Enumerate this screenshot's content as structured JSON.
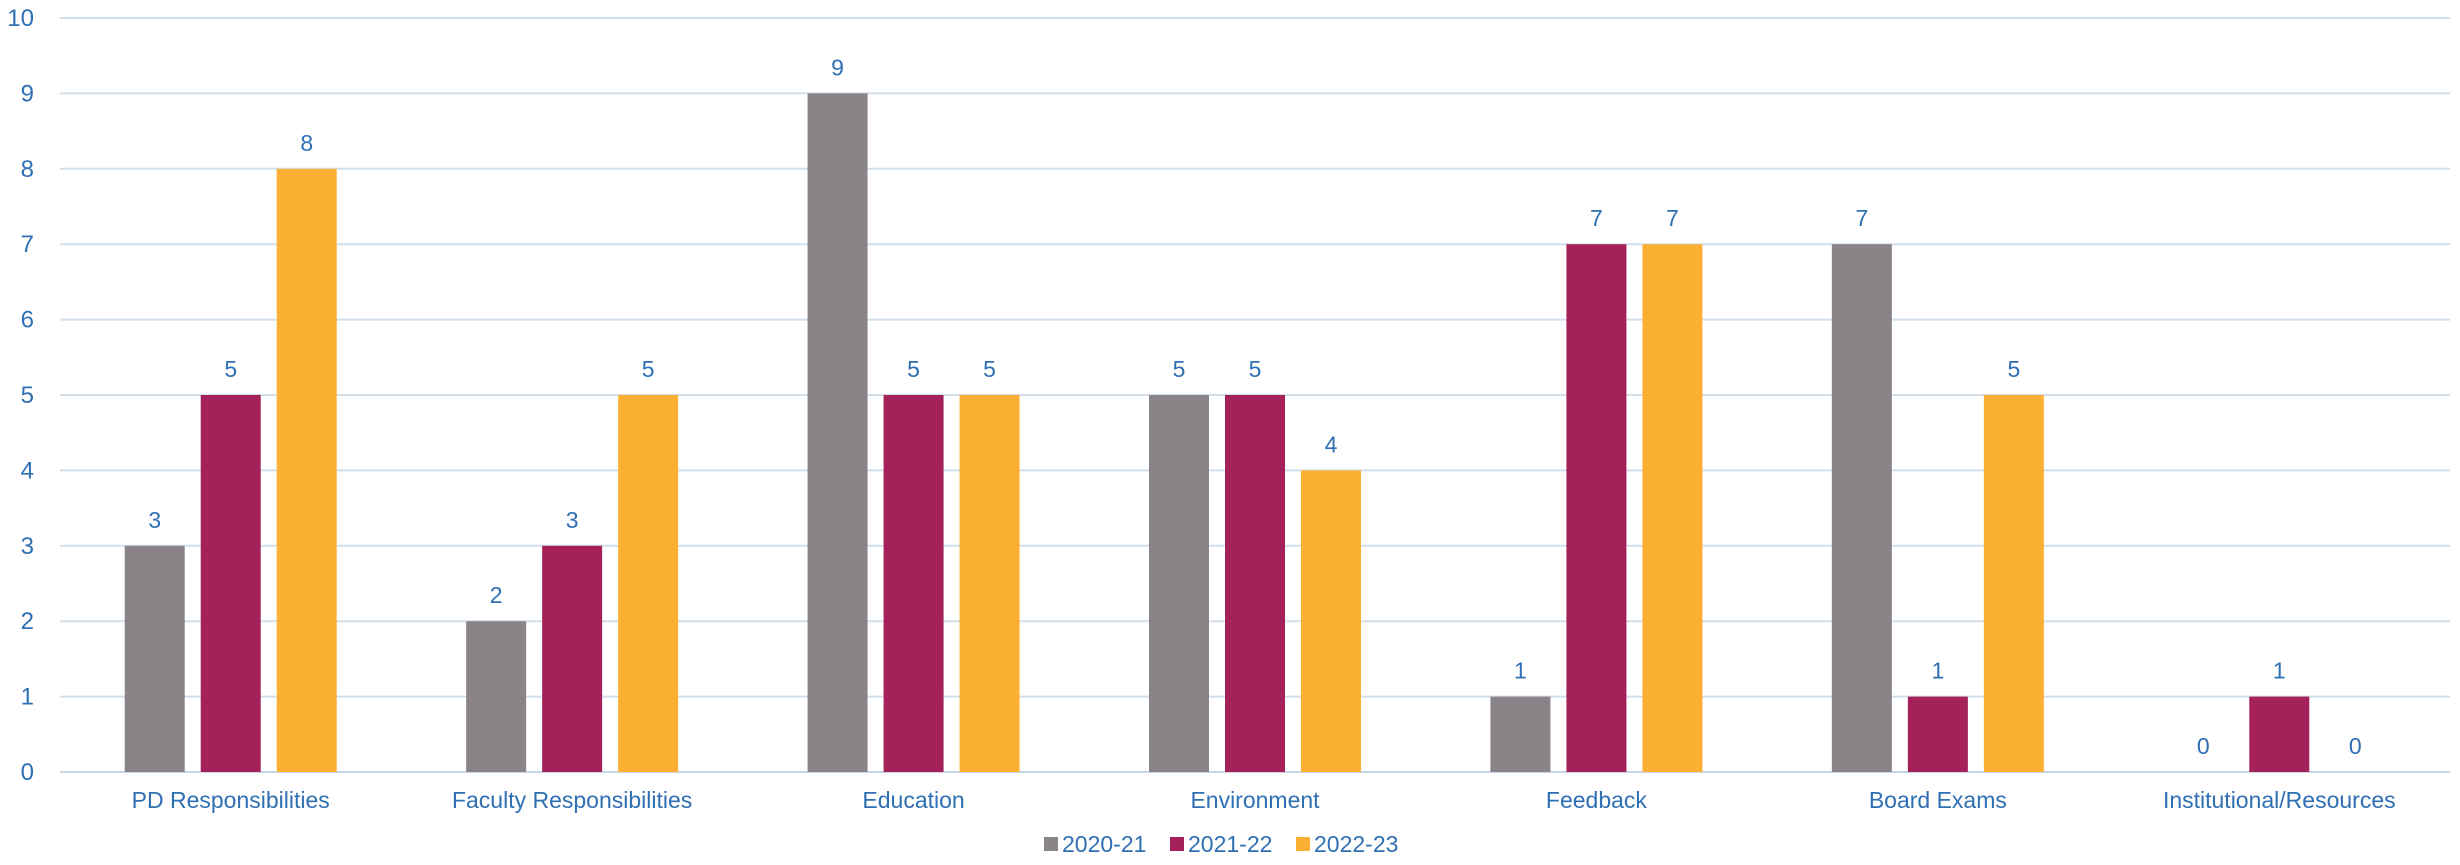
{
  "chart_data": {
    "type": "bar",
    "title": "",
    "xlabel": "",
    "ylabel": "",
    "ylim": [
      0,
      10
    ],
    "yticks": [
      0,
      1,
      2,
      3,
      4,
      5,
      6,
      7,
      8,
      9,
      10
    ],
    "grid": true,
    "legend_position": "bottom",
    "categories": [
      "PD Responsibilities",
      "Faculty Responsibilities",
      "Education",
      "Environment",
      "Feedback",
      "Board Exams",
      "Institutional/Resources"
    ],
    "series": [
      {
        "name": "2020-21",
        "color": "#8A8489",
        "values": [
          3,
          2,
          9,
          5,
          1,
          7,
          0
        ]
      },
      {
        "name": "2021-22",
        "color": "#A4215A",
        "values": [
          5,
          3,
          5,
          5,
          7,
          1,
          1
        ]
      },
      {
        "name": "2022-23",
        "color": "#FBB034",
        "values": [
          8,
          5,
          5,
          4,
          7,
          5,
          0
        ]
      }
    ],
    "colors": {
      "text": "#2F6FB3",
      "grid": "#D2DFEA",
      "axis": "#C9D6E3"
    }
  }
}
